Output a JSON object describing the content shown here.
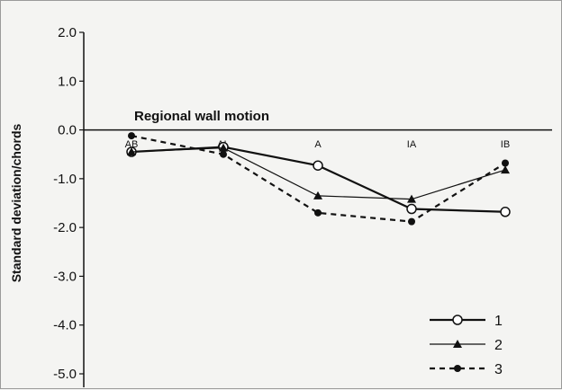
{
  "chart_data": {
    "type": "line",
    "title": "Regional wall motion",
    "xlabel": "",
    "ylabel": "Standard deviation/chords",
    "categories": [
      "AB",
      "AL",
      "A",
      "IA",
      "IB"
    ],
    "ylim": [
      -5.0,
      2.0
    ],
    "yticks": [
      "2.0",
      "1.0",
      "0.0",
      "-1.0",
      "-2.0",
      "-3.0",
      "-4.0",
      "-5.0"
    ],
    "grid": false,
    "legend_position": "bottom-right",
    "series": [
      {
        "name": "1",
        "marker": "open-circle",
        "line": "solid-thick",
        "values": [
          -0.45,
          -0.35,
          -0.73,
          -1.62,
          -1.68
        ]
      },
      {
        "name": "2",
        "marker": "filled-triangle",
        "line": "solid-thin",
        "values": [
          -0.45,
          -0.37,
          -1.35,
          -1.42,
          -0.82
        ]
      },
      {
        "name": "3",
        "marker": "filled-circle",
        "line": "dashed",
        "values": [
          -0.12,
          -0.5,
          -1.7,
          -1.88,
          -0.68
        ]
      }
    ]
  }
}
